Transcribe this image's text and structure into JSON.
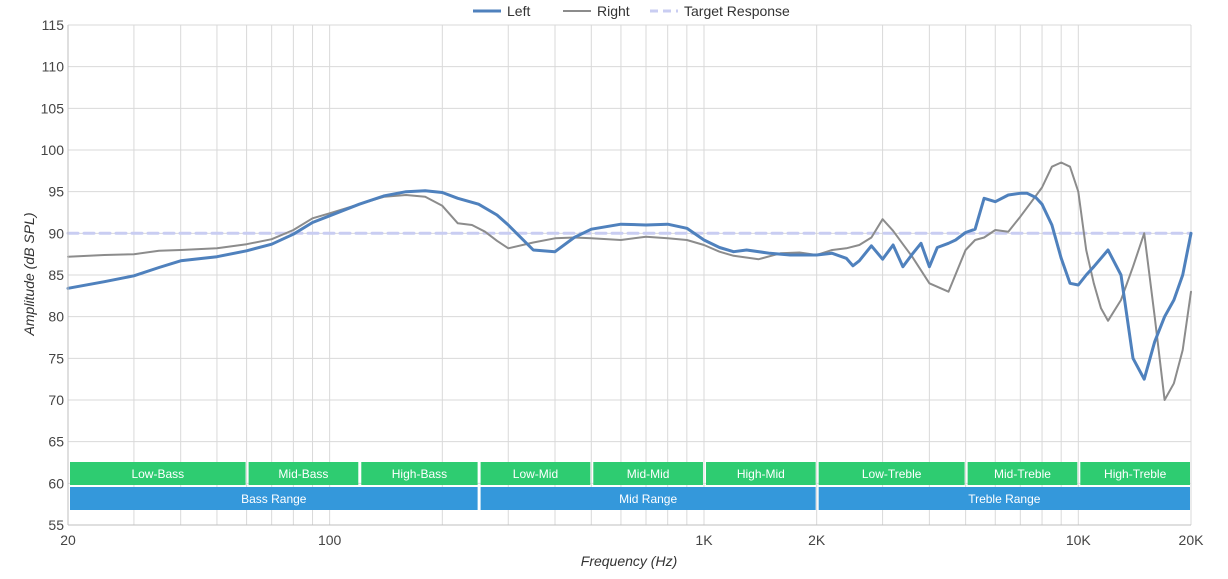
{
  "chart_data": {
    "type": "line",
    "title": "",
    "xlabel": "Frequency (Hz)",
    "ylabel": "Amplitude (dB SPL)",
    "x_scale": "log",
    "xlim": [
      20,
      20000
    ],
    "ylim": [
      55,
      115
    ],
    "x_ticks": [
      {
        "value": 20,
        "label": "20"
      },
      {
        "value": 100,
        "label": "100"
      },
      {
        "value": 1000,
        "label": "1K"
      },
      {
        "value": 2000,
        "label": "2K"
      },
      {
        "value": 10000,
        "label": "10K"
      },
      {
        "value": 20000,
        "label": "20K"
      }
    ],
    "y_ticks": [
      55,
      60,
      65,
      70,
      75,
      80,
      85,
      90,
      95,
      100,
      105,
      110,
      115
    ],
    "grid": true,
    "legend_position": "top-center",
    "legend": [
      "Left",
      "Right",
      "Target Response"
    ],
    "series": [
      {
        "name": "Left",
        "color": "#4f81bd",
        "x": [
          20,
          25,
          30,
          35,
          40,
          50,
          60,
          70,
          80,
          90,
          100,
          120,
          140,
          160,
          180,
          200,
          220,
          250,
          280,
          300,
          350,
          400,
          450,
          500,
          600,
          700,
          800,
          900,
          1000,
          1100,
          1200,
          1300,
          1500,
          1700,
          2000,
          2200,
          2400,
          2500,
          2600,
          2800,
          3000,
          3200,
          3400,
          3600,
          3800,
          4000,
          4200,
          4500,
          4700,
          5000,
          5300,
          5600,
          6000,
          6500,
          7000,
          7300,
          7700,
          8000,
          8500,
          9000,
          9500,
          10000,
          10500,
          11000,
          12000,
          13000,
          14000,
          15000,
          16000,
          17000,
          18000,
          19000,
          20000
        ],
        "y": [
          83.4,
          84.2,
          84.9,
          85.9,
          86.7,
          87.2,
          87.9,
          88.7,
          89.9,
          91.3,
          92.1,
          93.5,
          94.5,
          95.0,
          95.1,
          94.9,
          94.2,
          93.5,
          92.2,
          91.0,
          88.0,
          87.8,
          89.5,
          90.5,
          91.1,
          91.0,
          91.1,
          90.6,
          89.2,
          88.3,
          87.8,
          88.0,
          87.6,
          87.4,
          87.4,
          87.6,
          87.0,
          86.1,
          86.7,
          88.5,
          86.9,
          88.6,
          86.0,
          87.5,
          88.8,
          86.0,
          88.3,
          88.8,
          89.2,
          90.1,
          90.5,
          94.2,
          93.8,
          94.6,
          94.8,
          94.8,
          94.3,
          93.5,
          91.0,
          87.0,
          84.0,
          83.8,
          85.0,
          86.0,
          88.0,
          85.0,
          75.0,
          72.5,
          77.0,
          80.0,
          82.0,
          85.0,
          90.0
        ]
      },
      {
        "name": "Right",
        "color": "#8c8c8c",
        "x": [
          20,
          25,
          30,
          35,
          40,
          50,
          60,
          70,
          80,
          90,
          100,
          120,
          140,
          160,
          180,
          200,
          220,
          240,
          260,
          280,
          300,
          350,
          400,
          450,
          500,
          600,
          700,
          800,
          900,
          1000,
          1100,
          1200,
          1400,
          1600,
          1800,
          2000,
          2200,
          2400,
          2600,
          2800,
          3000,
          3200,
          3400,
          3600,
          4000,
          4500,
          5000,
          5300,
          5600,
          6000,
          6500,
          7000,
          7500,
          8000,
          8500,
          9000,
          9500,
          10000,
          10500,
          11000,
          11500,
          12000,
          13000,
          14000,
          15000,
          16000,
          17000,
          18000,
          19000,
          20000
        ],
        "y": [
          87.2,
          87.4,
          87.5,
          87.9,
          88.0,
          88.2,
          88.7,
          89.3,
          90.4,
          91.8,
          92.4,
          93.5,
          94.4,
          94.6,
          94.4,
          93.3,
          91.2,
          91.0,
          90.2,
          89.1,
          88.2,
          88.9,
          89.4,
          89.5,
          89.4,
          89.2,
          89.6,
          89.4,
          89.2,
          88.6,
          87.8,
          87.3,
          86.9,
          87.6,
          87.7,
          87.4,
          88.0,
          88.2,
          88.6,
          89.5,
          91.7,
          90.3,
          88.7,
          87.2,
          84.0,
          83.0,
          88.0,
          89.2,
          89.5,
          90.4,
          90.2,
          92.0,
          93.8,
          95.5,
          98.0,
          98.5,
          98.0,
          95.0,
          88.0,
          84.0,
          81.0,
          79.5,
          82.0,
          86.0,
          90.0,
          80.0,
          70.0,
          72.0,
          76.0,
          83.0
        ]
      },
      {
        "name": "Target Response",
        "color": "#c9cdf2",
        "x": [
          20,
          20000
        ],
        "y": [
          90,
          90
        ]
      }
    ],
    "bands": [
      {
        "label": "Low-Bass",
        "from": 20,
        "to": 60,
        "row": 1
      },
      {
        "label": "Mid-Bass",
        "from": 60,
        "to": 120,
        "row": 1
      },
      {
        "label": "High-Bass",
        "from": 120,
        "to": 250,
        "row": 1
      },
      {
        "label": "Low-Mid",
        "from": 250,
        "to": 500,
        "row": 1
      },
      {
        "label": "Mid-Mid",
        "from": 500,
        "to": 1000,
        "row": 1
      },
      {
        "label": "High-Mid",
        "from": 1000,
        "to": 2000,
        "row": 1
      },
      {
        "label": "Low-Treble",
        "from": 2000,
        "to": 5000,
        "row": 1
      },
      {
        "label": "Mid-Treble",
        "from": 5000,
        "to": 10000,
        "row": 1
      },
      {
        "label": "High-Treble",
        "from": 10000,
        "to": 20000,
        "row": 1
      },
      {
        "label": "Bass Range",
        "from": 20,
        "to": 250,
        "row": 2
      },
      {
        "label": "Mid Range",
        "from": 250,
        "to": 2000,
        "row": 2
      },
      {
        "label": "Treble Range",
        "from": 2000,
        "to": 20000,
        "row": 2
      }
    ],
    "colors": {
      "band_row1": "#2ecc71",
      "band_row2": "#3498db",
      "grid": "#d9d9d9"
    }
  }
}
